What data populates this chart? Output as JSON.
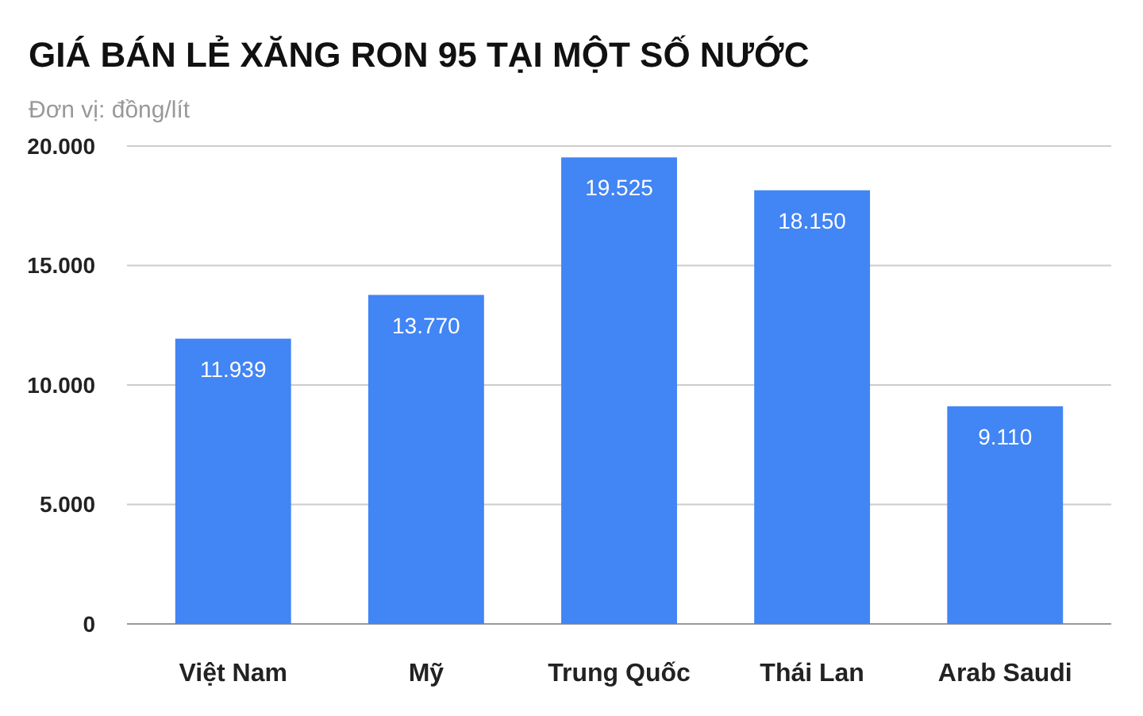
{
  "chart_data": {
    "type": "bar",
    "title": "GIÁ BÁN LẺ XĂNG RON 95 TẠI MỘT SỐ NƯỚC",
    "subtitle": "Đơn vị: đồng/lít",
    "categories": [
      "Việt Nam",
      "Mỹ",
      "Trung Quốc",
      "Thái Lan",
      "Arab Saudi"
    ],
    "values": [
      11939,
      13770,
      19525,
      18150,
      9110
    ],
    "value_labels": [
      "11.939",
      "13.770",
      "19.525",
      "18.150",
      "9.110"
    ],
    "color": "#4285f4",
    "ylim": [
      0,
      20000
    ],
    "yticks": [
      0,
      {
        "value": 5000,
        "label": "5.000"
      },
      {
        "value": 10000,
        "label": "10.000"
      },
      {
        "value": 15000,
        "label": "15.000"
      },
      {
        "value": 20000,
        "label": "20.000"
      }
    ],
    "grid": "y"
  }
}
